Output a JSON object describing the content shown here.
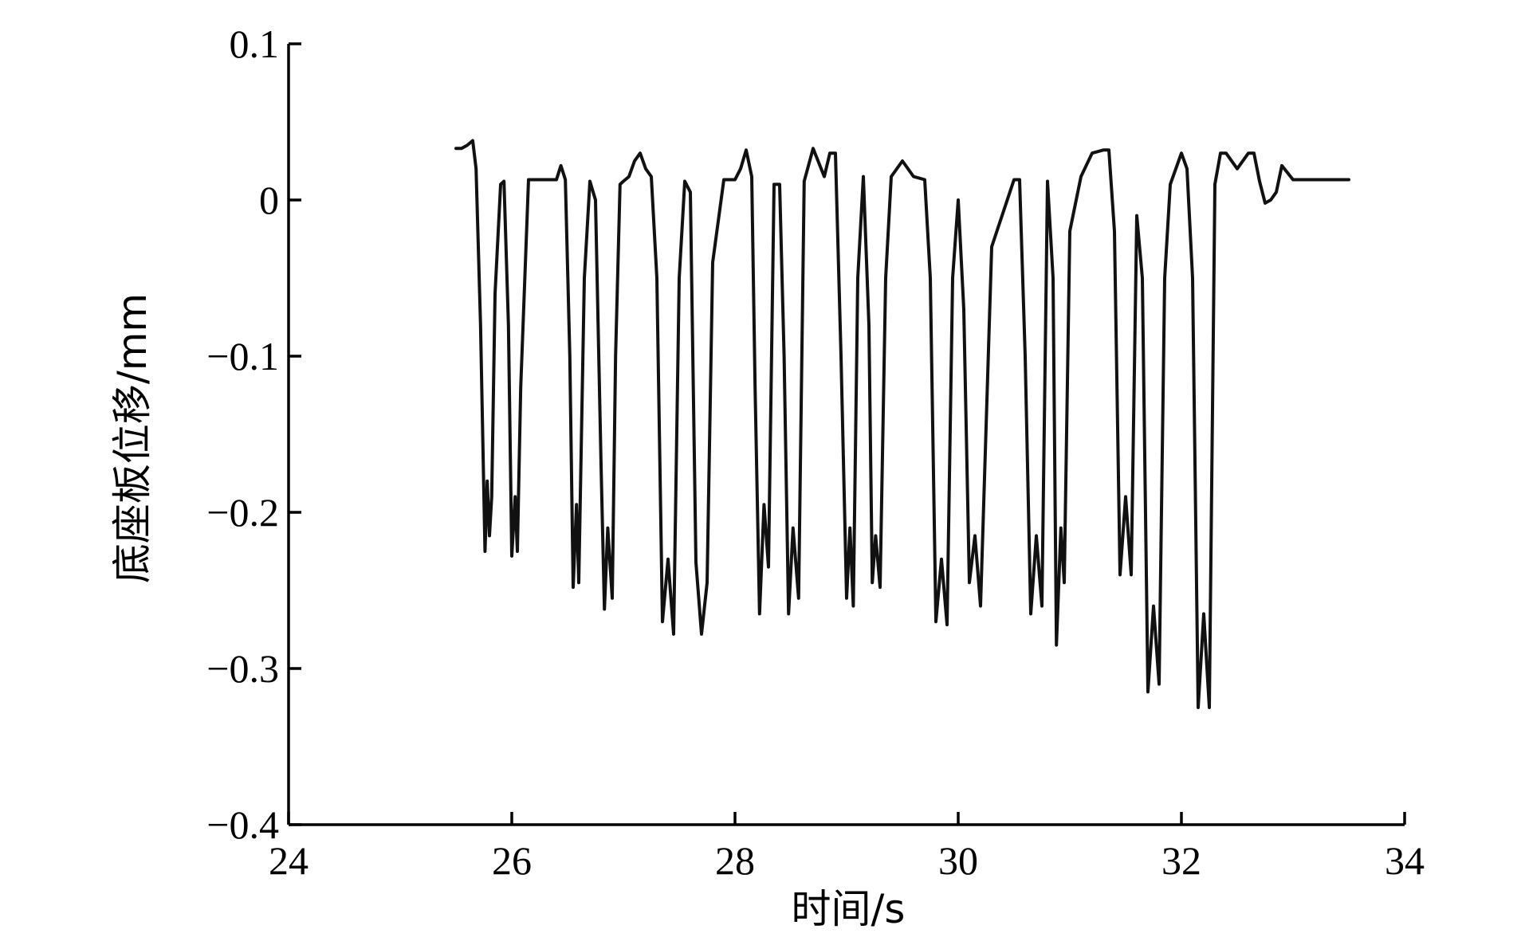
{
  "chart_data": {
    "type": "line",
    "title": "",
    "xlabel": "时间/s",
    "ylabel": "底座板位移/mm",
    "xlim": [
      24,
      34
    ],
    "ylim": [
      -0.4,
      0.1
    ],
    "x_ticks": [
      24,
      26,
      28,
      30,
      32,
      34
    ],
    "y_ticks": [
      0.1,
      0,
      -0.1,
      -0.2,
      -0.3,
      -0.4
    ],
    "x_tick_labels": [
      "24",
      "26",
      "28",
      "30",
      "32",
      "34"
    ],
    "y_tick_labels": [
      "0.1",
      "0",
      "−0.1",
      "−0.2",
      "−0.3",
      "−0.4"
    ],
    "grid": false,
    "legend": "none",
    "line_color": "#111111",
    "series": [
      {
        "x": [
          25.5,
          25.55,
          25.6,
          25.65,
          25.68,
          25.72,
          25.76,
          25.78,
          25.8,
          25.82,
          25.85,
          25.9,
          25.93,
          25.97,
          26.0,
          26.03,
          26.05,
          26.08,
          26.15,
          26.2,
          26.4,
          26.44,
          26.48,
          26.52,
          26.55,
          26.58,
          26.6,
          26.65,
          26.7,
          26.75,
          26.8,
          26.83,
          26.86,
          26.9,
          26.93,
          26.97,
          27.0,
          27.05,
          27.1,
          27.15,
          27.2,
          27.25,
          27.3,
          27.35,
          27.4,
          27.45,
          27.5,
          27.55,
          27.6,
          27.65,
          27.7,
          27.75,
          27.8,
          27.9,
          28.0,
          28.05,
          28.1,
          28.15,
          28.18,
          28.22,
          28.26,
          28.3,
          28.35,
          28.4,
          28.44,
          28.48,
          28.52,
          28.57,
          28.62,
          28.7,
          28.8,
          28.85,
          28.9,
          28.95,
          29.0,
          29.03,
          29.06,
          29.1,
          29.15,
          29.2,
          29.23,
          29.26,
          29.3,
          29.35,
          29.4,
          29.5,
          29.6,
          29.7,
          29.75,
          29.8,
          29.85,
          29.9,
          29.95,
          30.0,
          30.05,
          30.1,
          30.15,
          30.2,
          30.3,
          30.5,
          30.55,
          30.6,
          30.65,
          30.7,
          30.75,
          30.8,
          30.85,
          30.88,
          30.92,
          30.95,
          31.0,
          31.1,
          31.2,
          31.3,
          31.35,
          31.4,
          31.45,
          31.5,
          31.55,
          31.6,
          31.65,
          31.7,
          31.75,
          31.8,
          31.85,
          31.9,
          32.0,
          32.05,
          32.1,
          32.15,
          32.2,
          32.25,
          32.3,
          32.35,
          32.4,
          32.5,
          32.6,
          32.65,
          32.7,
          32.75,
          32.8,
          32.85,
          32.9,
          33.0,
          33.2,
          33.5
        ],
        "y": [
          0.033,
          0.033,
          0.035,
          0.038,
          0.02,
          -0.08,
          -0.225,
          -0.18,
          -0.215,
          -0.19,
          -0.06,
          0.01,
          0.012,
          -0.08,
          -0.228,
          -0.19,
          -0.225,
          -0.12,
          0.013,
          0.013,
          0.013,
          0.022,
          0.013,
          -0.1,
          -0.248,
          -0.195,
          -0.245,
          -0.05,
          0.012,
          0.0,
          -0.17,
          -0.262,
          -0.21,
          -0.255,
          -0.1,
          0.01,
          0.012,
          0.015,
          0.025,
          0.03,
          0.02,
          0.015,
          -0.05,
          -0.27,
          -0.23,
          -0.278,
          -0.05,
          0.012,
          0.005,
          -0.232,
          -0.278,
          -0.245,
          -0.04,
          0.013,
          0.013,
          0.02,
          0.032,
          0.015,
          -0.12,
          -0.265,
          -0.195,
          -0.235,
          0.01,
          0.01,
          -0.1,
          -0.265,
          -0.21,
          -0.255,
          0.012,
          0.033,
          0.015,
          0.03,
          0.03,
          -0.1,
          -0.255,
          -0.21,
          -0.26,
          -0.05,
          0.015,
          -0.08,
          -0.245,
          -0.215,
          -0.248,
          -0.05,
          0.015,
          0.025,
          0.015,
          0.013,
          -0.05,
          -0.27,
          -0.23,
          -0.272,
          -0.05,
          0.0,
          -0.07,
          -0.245,
          -0.215,
          -0.26,
          -0.03,
          0.013,
          0.013,
          -0.1,
          -0.265,
          -0.215,
          -0.26,
          0.012,
          -0.05,
          -0.285,
          -0.21,
          -0.245,
          -0.02,
          0.015,
          0.03,
          0.032,
          0.032,
          -0.02,
          -0.24,
          -0.19,
          -0.24,
          -0.01,
          -0.05,
          -0.315,
          -0.26,
          -0.31,
          -0.05,
          0.01,
          0.03,
          0.02,
          -0.05,
          -0.325,
          -0.265,
          -0.325,
          0.01,
          0.03,
          0.03,
          0.02,
          0.03,
          0.03,
          0.012,
          -0.002,
          0.0,
          0.005,
          0.022,
          0.013,
          0.013,
          0.013
        ]
      }
    ]
  }
}
